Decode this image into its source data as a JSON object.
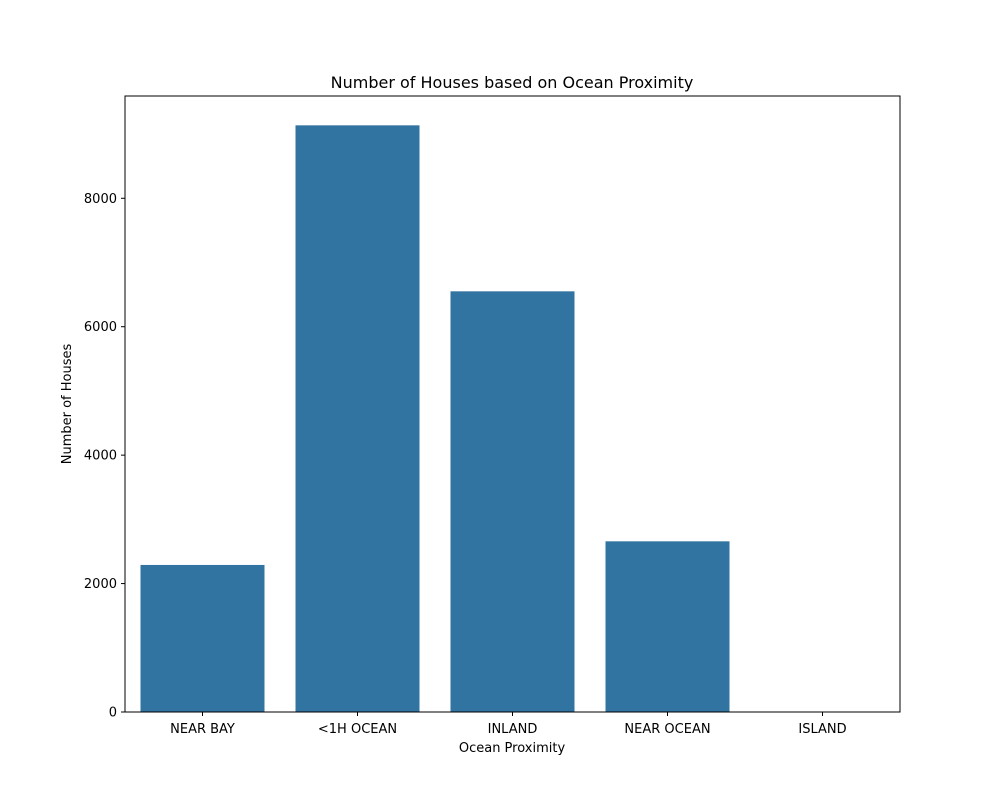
{
  "chart_data": {
    "type": "bar",
    "title": "Number of Houses based on Ocean Proximity",
    "xlabel": "Ocean Proximity",
    "ylabel": "Number of Houses",
    "categories": [
      "NEAR BAY",
      "<1H OCEAN",
      "INLAND",
      "NEAR OCEAN",
      "ISLAND"
    ],
    "values": [
      2290,
      9136,
      6551,
      2658,
      5
    ],
    "ylim": [
      0,
      9592.8
    ],
    "yticks": [
      0,
      2000,
      4000,
      6000,
      8000
    ],
    "ytick_labels": [
      "0",
      "2000",
      "4000",
      "6000",
      "8000"
    ],
    "grid": false,
    "legend": "none",
    "bar_color": "#3274a1"
  }
}
